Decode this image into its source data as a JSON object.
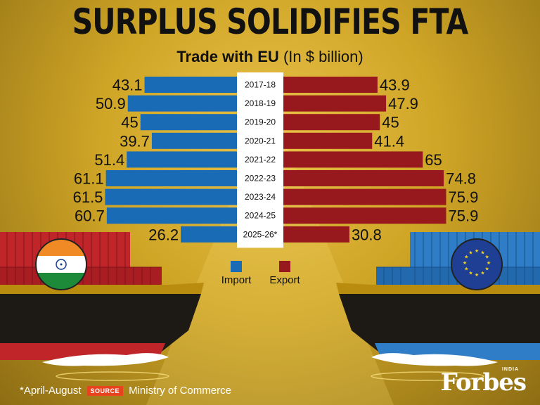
{
  "header": {
    "title": "SURPLUS SOLIDIFIES FTA",
    "subtitle_bold": "Trade with EU",
    "subtitle_rest": "(In $ billion)"
  },
  "footer": {
    "note": "*April-August",
    "source_badge": "SOURCE",
    "source": "Ministry of Commerce",
    "brand": "Forbes",
    "brand_sub": "INDIA"
  },
  "colors": {
    "import": "#1a6bb5",
    "export": "#98191d",
    "background": "#d7ae2f"
  },
  "icons": [
    "india-flag-icon",
    "eu-flag-icon",
    "cargo-ship-left",
    "cargo-ship-right"
  ],
  "chart_data": {
    "type": "bar",
    "orientation": "horizontal-diverging",
    "title": "SURPLUS SOLIDIFIES FTA",
    "subtitle": "Trade with EU (In $ billion)",
    "categories": [
      "2017-18",
      "2018-19",
      "2019-20",
      "2020-21",
      "2021-22",
      "2022-23",
      "2023-24",
      "2024-25",
      "2025-26*"
    ],
    "series": [
      {
        "name": "Import",
        "values": [
          43.1,
          50.9,
          45,
          39.7,
          51.4,
          61.1,
          61.5,
          60.7,
          26.2
        ]
      },
      {
        "name": "Export",
        "values": [
          43.9,
          47.9,
          45,
          41.4,
          65,
          74.8,
          75.9,
          75.9,
          30.8
        ]
      }
    ],
    "value_labels": {
      "Import": [
        "43.1",
        "50.9",
        "45",
        "39.7",
        "51.4",
        "61.1",
        "61.5",
        "60.7",
        "26.2"
      ],
      "Export": [
        "43.9",
        "47.9",
        "45",
        "41.4",
        "65",
        "74.8",
        "75.9",
        "75.9",
        "30.8"
      ]
    },
    "legend": {
      "position": "bottom-center",
      "entries": [
        "Import",
        "Export"
      ]
    },
    "grid": false
  }
}
